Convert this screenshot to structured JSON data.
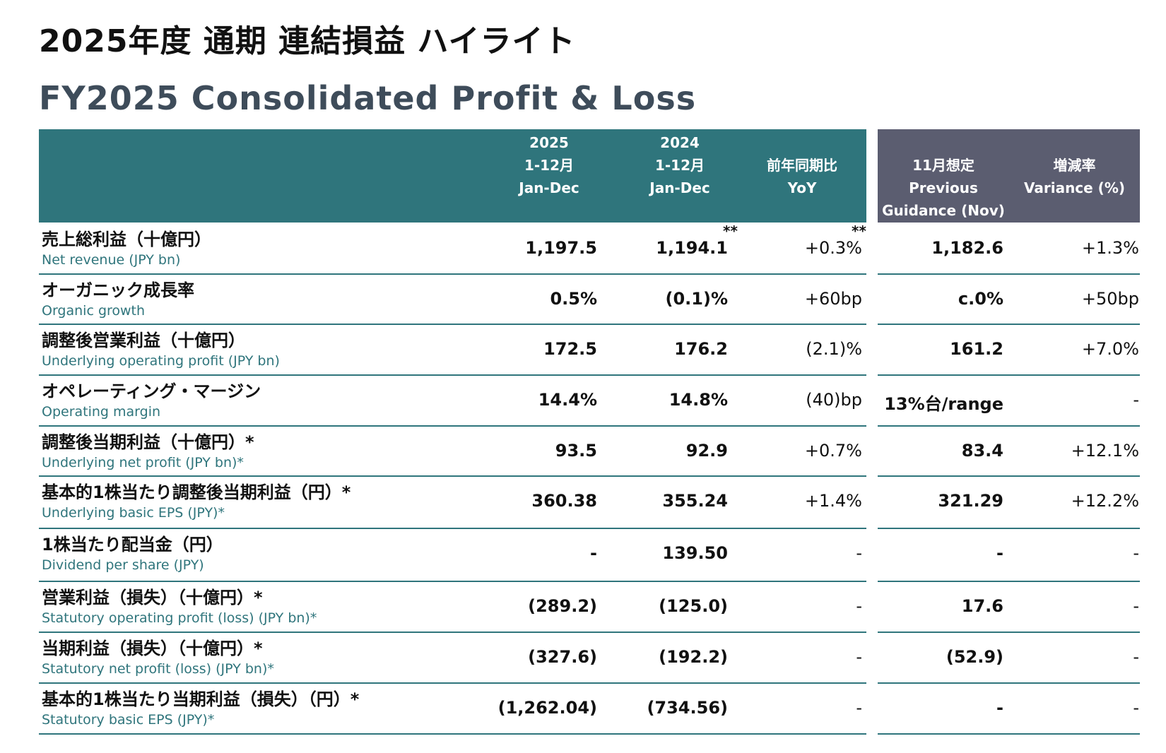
{
  "title_jp": "2025年度 通期 連結損益 ハイライト",
  "title_en": "FY2025 Consolidated Profit & Loss",
  "header": {
    "col_2025": [
      "2025",
      "1-12月",
      "Jan-Dec"
    ],
    "col_2024": [
      "2024",
      "1-12月",
      "Jan-Dec"
    ],
    "col_yoy": [
      "前年同期比",
      "YoY"
    ],
    "col_prev": [
      "11月想定",
      "Previous",
      "Guidance (Nov)"
    ],
    "col_var": [
      "増減率",
      "Variance (%)"
    ]
  },
  "footnote_mark": "**",
  "rows": [
    {
      "jp": "売上総利益（十億円）",
      "en": "Net revenue (JPY bn)",
      "v2025": "1,197.5",
      "v2024": "1,194.1",
      "yoy": "+0.3%",
      "prev": "1,182.6",
      "var": "+1.3%"
    },
    {
      "jp": "オーガニック成長率",
      "en": "Organic growth",
      "v2025": "0.5%",
      "v2024": "(0.1)%",
      "yoy": "+60bp",
      "prev": "c.0%",
      "var": "+50bp"
    },
    {
      "jp": "調整後営業利益（十億円）",
      "en": "Underlying operating profit (JPY bn)",
      "v2025": "172.5",
      "v2024": "176.2",
      "yoy": "(2.1)%",
      "prev": "161.2",
      "var": "+7.0%"
    },
    {
      "jp": "オペレーティング・マージン",
      "en": "Operating margin",
      "v2025": "14.4%",
      "v2024": "14.8%",
      "yoy": "(40)bp",
      "prev": "13%台/range",
      "var": "-"
    },
    {
      "jp": "調整後当期利益（十億円）*",
      "en": "Underlying net profit (JPY bn)*",
      "v2025": "93.5",
      "v2024": "92.9",
      "yoy": "+0.7%",
      "prev": "83.4",
      "var": "+12.1%"
    },
    {
      "jp": "基本的1株当たり調整後当期利益（円）*",
      "en": "Underlying basic EPS (JPY)*",
      "v2025": "360.38",
      "v2024": "355.24",
      "yoy": "+1.4%",
      "prev": "321.29",
      "var": "+12.2%"
    },
    {
      "jp": "1株当たり配当金（円）",
      "en": "Dividend per share (JPY)",
      "v2025": "-",
      "v2024": "139.50",
      "yoy": "-",
      "prev": "-",
      "var": "-"
    },
    {
      "jp": "営業利益（損失）（十億円）*",
      "en": "Statutory operating profit (loss) (JPY bn)*",
      "v2025": "(289.2)",
      "v2024": "(125.0)",
      "yoy": "-",
      "prev": "17.6",
      "var": "-"
    },
    {
      "jp": "当期利益（損失）（十億円）*",
      "en": "Statutory net profit (loss) (JPY bn)*",
      "v2025": "(327.6)",
      "v2024": "(192.2)",
      "yoy": "-",
      "prev": "(52.9)",
      "var": "-"
    },
    {
      "jp": "基本的1株当たり当期利益（損失）（円）*",
      "en": "Statutory basic EPS (JPY)*",
      "v2025": "(1,262.04)",
      "v2024": "(734.56)",
      "yoy": "-",
      "prev": "-",
      "var": "-"
    }
  ]
}
